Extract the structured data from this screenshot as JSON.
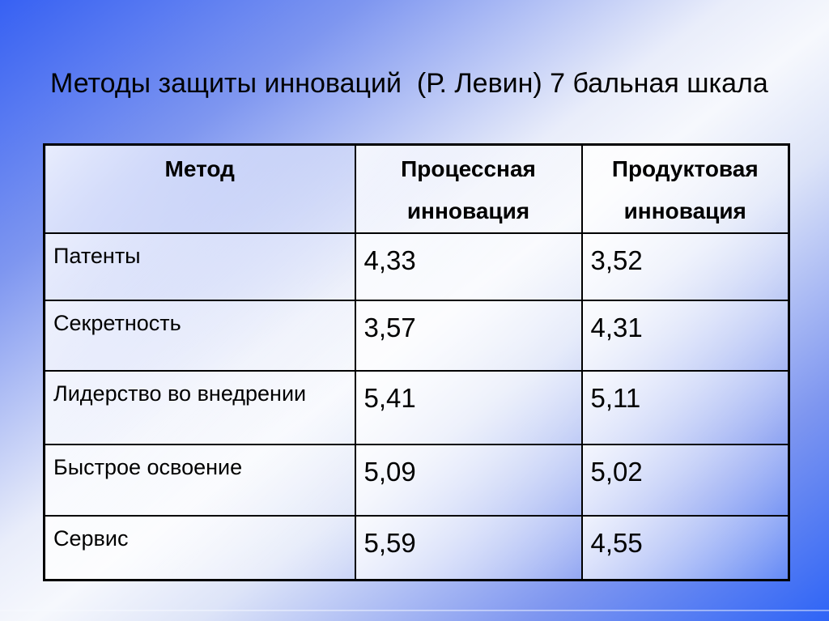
{
  "slide": {
    "title": "Методы защиты инноваций  (Р. Левин) 7 бальная шкала"
  },
  "table": {
    "headers": [
      "Метод",
      "Процессная инновация",
      "Продуктовая инновация"
    ],
    "rows": [
      {
        "method": "Патенты",
        "process": "4,33",
        "product": "3,52"
      },
      {
        "method": "Секретность",
        "process": "3,57",
        "product": "4,31"
      },
      {
        "method": "Лидерство во внедрении",
        "process": "5,41",
        "product": "5,11"
      },
      {
        "method": "Быстрое освоение",
        "process": "5,09",
        "product": "5,02"
      },
      {
        "method": "Сервис",
        "process": "5,59",
        "product": "4,55"
      }
    ]
  },
  "colors": {
    "background_corner_blue": "#3761F3",
    "background_center_white": "#F6F8FD",
    "table_border": "#000000",
    "text": "#000000"
  }
}
